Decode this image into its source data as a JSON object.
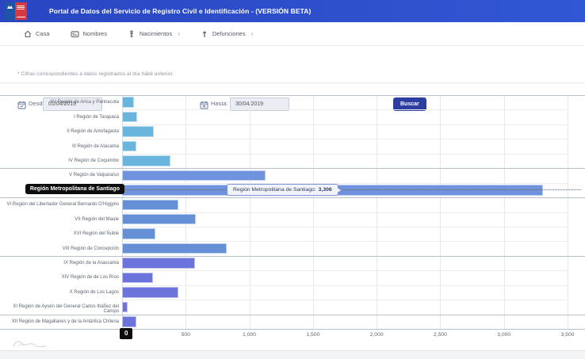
{
  "header": {
    "title": "Portal de Datos del Servicio de Registro Civil e Identificación - (VERSIÓN BETA)"
  },
  "nav": {
    "items": [
      {
        "label": "Casa",
        "icon": "home-icon"
      },
      {
        "label": "Nombres",
        "icon": "id-card-icon"
      },
      {
        "label": "Nacimientos",
        "icon": "baby-icon",
        "chevron": "›"
      },
      {
        "label": "Defunciones",
        "icon": "cross-icon",
        "chevron": "›"
      }
    ]
  },
  "filters": {
    "desde_label": "Desde:",
    "desde_value": "01/04/2019",
    "desde_icon": "calendar-check-icon",
    "hasta_label": "Hasta:",
    "hasta_value": "30/04/2019",
    "hasta_icon": "calendar-x-icon",
    "buscar_label": "Buscar"
  },
  "note": "* Cifras correspondientes a datos registrados al día hábil anterior.",
  "colors": {
    "header_bg": "#2c4fcc",
    "button_bg": "#2d3da0",
    "bar_blue_light": "#69b5de",
    "bar_blue": "#6f93dc",
    "bar_blue_mid": "#6590d6",
    "bar_purple": "#6c73da",
    "grid_light": "#ededed",
    "grid_strong": "#b6c1cb",
    "tooltip_border": "#7d93d6"
  },
  "chart_data": {
    "type": "bar",
    "orientation": "horizontal",
    "title": "",
    "xlabel": "",
    "ylabel": "",
    "xlim": [
      0,
      3500
    ],
    "grid": true,
    "x_ticks": [
      "0",
      "500",
      "1,000",
      "1,500",
      "2,000",
      "2,500",
      "3,000",
      "3,500"
    ],
    "categories": [
      "XV Región de Arica y Parinacota",
      "I Región de Tarapacá",
      "II Región de Antofagasta",
      "III Región de Atacama",
      "IV Región de Coquimbo",
      "V Región de Valparaíso",
      "Región Metropolitana de Santiago",
      "VI Región del Libertador General Bernardo O'Higgins",
      "VII Región del Maule",
      "XVI Región del Ñuble",
      "VIII Región de Concepción",
      "IX Región de la Araucanía",
      "XIV Región de de Los Ríos",
      "X Región de Los Lagos",
      "XI Región de Aysén del General Carlos Ibáñez del Campo",
      "XII Región de Magallanes y de la Antártica Chilena"
    ],
    "values": [
      95,
      120,
      250,
      110,
      380,
      1125,
      3306,
      440,
      580,
      260,
      825,
      570,
      240,
      440,
      44,
      112
    ],
    "bar_colors": [
      "#69b5de",
      "#69b5de",
      "#69b5de",
      "#69b5de",
      "#69b5de",
      "#6f93dc",
      "#6f93dc",
      "#6590d6",
      "#6590d6",
      "#6590d6",
      "#6590d6",
      "#6c73da",
      "#6c73da",
      "#6c73da",
      "#6c73da",
      "#6c73da"
    ],
    "group_separators_after": [
      5,
      7,
      11,
      15
    ],
    "highlight": {
      "index": 6,
      "category_label": "Región Metropolitana de Santiago",
      "tooltip_label": "Región Metropolitana de Santiago:",
      "tooltip_value": "3,306",
      "axis_hover_label": "0"
    }
  }
}
